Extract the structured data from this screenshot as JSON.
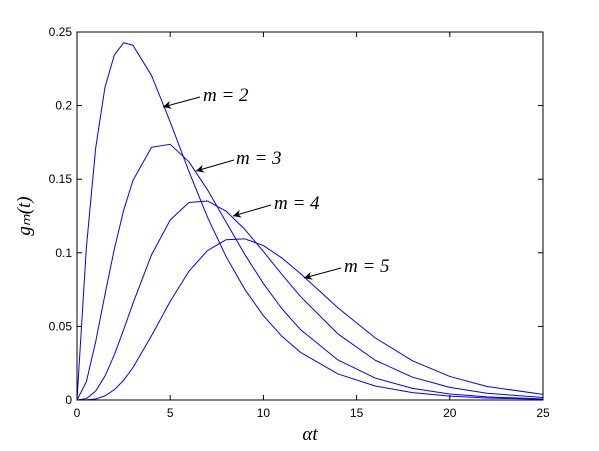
{
  "chart_data": {
    "type": "line",
    "xlabel": "αt",
    "ylabel": "gₘ(t)",
    "x": [
      0,
      0.5,
      1,
      1.5,
      2,
      2.5,
      3,
      4,
      5,
      6,
      7,
      8,
      9,
      10,
      11,
      12,
      14,
      16,
      18,
      20,
      22,
      25
    ],
    "series": [
      {
        "name": "m = 2",
        "color": "#0000ff",
        "values": [
          0,
          0.1032,
          0.171,
          0.2124,
          0.2343,
          0.2427,
          0.241,
          0.2204,
          0.1889,
          0.1554,
          0.1242,
          0.0974,
          0.0752,
          0.0573,
          0.0432,
          0.0323,
          0.0177,
          0.0095,
          0.005,
          0.0026,
          0.0014,
          0.0005
        ]
      },
      {
        "name": "m = 3",
        "color": "#0000ff",
        "values": [
          0,
          0.0123,
          0.0395,
          0.0716,
          0.1024,
          0.1287,
          0.1491,
          0.1717,
          0.1737,
          0.1619,
          0.1428,
          0.1208,
          0.0989,
          0.0791,
          0.0619,
          0.0477,
          0.0272,
          0.0149,
          0.0079,
          0.0041,
          0.0021,
          0.0007
        ]
      },
      {
        "name": "m = 4",
        "color": "#0000ff",
        "values": [
          0,
          0.0009,
          0.006,
          0.0162,
          0.0306,
          0.0477,
          0.0656,
          0.0987,
          0.1223,
          0.1342,
          0.1352,
          0.1283,
          0.1159,
          0.1009,
          0.0852,
          0.0702,
          0.0449,
          0.027,
          0.0155,
          0.0086,
          0.0046,
          0.0017
        ]
      },
      {
        "name": "m = 5",
        "color": "#0000ff",
        "values": [
          0,
          0.0001,
          0.0007,
          0.0028,
          0.0069,
          0.0134,
          0.022,
          0.0437,
          0.067,
          0.0874,
          0.1015,
          0.1089,
          0.1095,
          0.1049,
          0.0964,
          0.0858,
          0.0626,
          0.0422,
          0.0266,
          0.016,
          0.0092,
          0.0038
        ]
      }
    ],
    "xlim": [
      0,
      25
    ],
    "xticks": [
      0,
      5,
      10,
      15,
      20,
      25
    ],
    "ylim": [
      0,
      0.25
    ],
    "yticks": [
      0,
      0.05,
      0.1,
      0.15,
      0.2,
      0.25
    ],
    "grid": false
  }
}
